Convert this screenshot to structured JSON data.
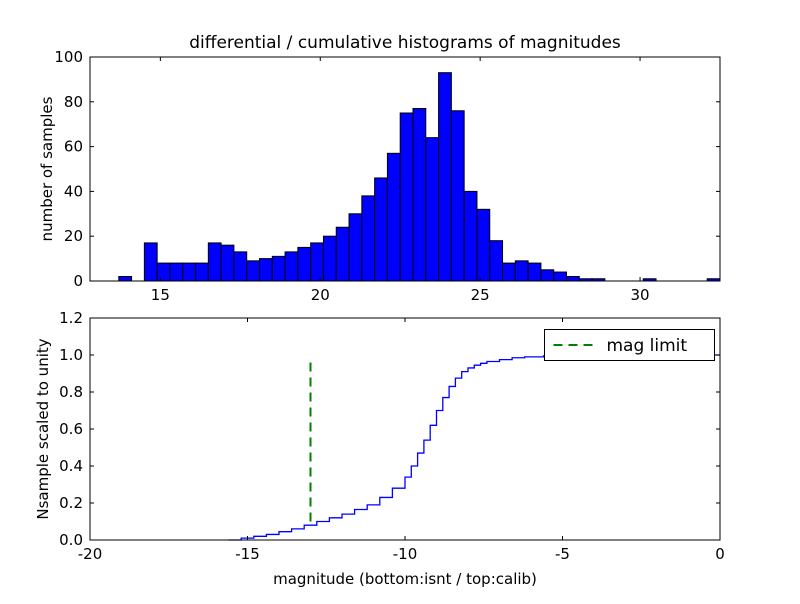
{
  "figure": {
    "background": "#ffffff"
  },
  "chart_data": [
    {
      "type": "bar",
      "title": "differential / cumulative histograms of magnitudes",
      "xlabel": "",
      "ylabel": "number of samples",
      "bar_color": "#0000ff",
      "bar_edge_color": "#000000",
      "bin_start": 13.7,
      "bin_width": 0.4,
      "values": [
        2,
        0,
        17,
        8,
        8,
        8,
        8,
        17,
        16,
        13,
        9,
        10,
        11,
        13,
        15,
        17,
        20,
        24,
        30,
        38,
        46,
        57,
        75,
        77,
        64,
        93,
        76,
        40,
        32,
        18,
        8,
        9,
        8,
        5,
        4,
        2,
        1,
        1,
        0,
        0,
        0,
        1,
        0,
        0,
        0,
        0,
        1
      ],
      "xlim": [
        12.8,
        32.5
      ],
      "ylim": [
        0,
        100
      ],
      "xticks": [
        15,
        20,
        25,
        30
      ],
      "xtick_labels": [
        "15",
        "20",
        "25",
        "30"
      ],
      "yticks": [
        0,
        20,
        40,
        60,
        80,
        100
      ],
      "ytick_labels": [
        "0",
        "20",
        "40",
        "60",
        "80",
        "100"
      ],
      "grid": false
    },
    {
      "type": "line",
      "title": "",
      "xlabel": "magnitude (bottom:isnt / top:calib)",
      "ylabel": "Nsample scaled to unity",
      "line_color": "#0000ff",
      "step_points": [
        [
          -15.6,
          0.0
        ],
        [
          -15.2,
          0.01
        ],
        [
          -14.8,
          0.02
        ],
        [
          -14.4,
          0.03
        ],
        [
          -14.0,
          0.045
        ],
        [
          -13.6,
          0.06
        ],
        [
          -13.2,
          0.08
        ],
        [
          -12.8,
          0.1
        ],
        [
          -12.4,
          0.12
        ],
        [
          -12.0,
          0.14
        ],
        [
          -11.6,
          0.165
        ],
        [
          -11.2,
          0.19
        ],
        [
          -10.8,
          0.23
        ],
        [
          -10.4,
          0.28
        ],
        [
          -10.0,
          0.34
        ],
        [
          -9.8,
          0.4
        ],
        [
          -9.6,
          0.47
        ],
        [
          -9.4,
          0.54
        ],
        [
          -9.2,
          0.62
        ],
        [
          -9.0,
          0.7
        ],
        [
          -8.8,
          0.77
        ],
        [
          -8.6,
          0.83
        ],
        [
          -8.4,
          0.875
        ],
        [
          -8.2,
          0.91
        ],
        [
          -8.0,
          0.93
        ],
        [
          -7.8,
          0.945
        ],
        [
          -7.6,
          0.955
        ],
        [
          -7.4,
          0.965
        ],
        [
          -7.0,
          0.975
        ],
        [
          -6.6,
          0.985
        ],
        [
          -6.2,
          0.99
        ],
        [
          -5.6,
          0.995
        ],
        [
          -5.0,
          1.0
        ],
        [
          0.0,
          1.0
        ]
      ],
      "xlim": [
        -20,
        0
      ],
      "ylim": [
        0,
        1.2
      ],
      "xticks": [
        -20,
        -15,
        -10,
        -5,
        0
      ],
      "xtick_labels": [
        "-20",
        "-15",
        "-10",
        "-5",
        "0"
      ],
      "yticks": [
        0,
        0.2,
        0.4,
        0.6,
        0.8,
        1.0,
        1.2
      ],
      "ytick_labels": [
        "0.0",
        "0.2",
        "0.4",
        "0.6",
        "0.8",
        "1.0",
        "1.2"
      ],
      "mag_limit_line": {
        "x": -13,
        "y_from": 0.1,
        "y_to": 0.965,
        "color": "#008000",
        "style": "dashed"
      },
      "legend": {
        "label": "mag limit",
        "position": "upper right"
      },
      "grid": false
    }
  ]
}
